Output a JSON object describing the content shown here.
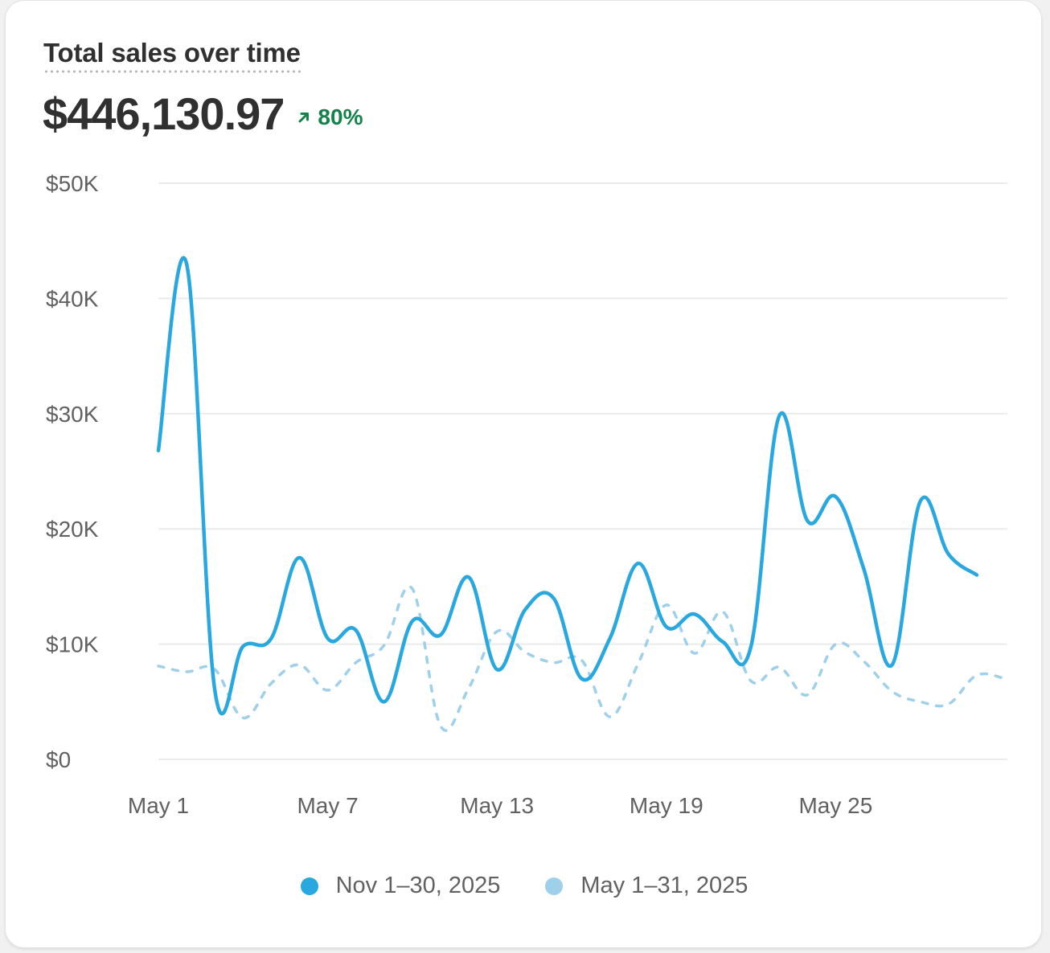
{
  "card": {
    "title": "Total sales over time",
    "total": "$446,130.97",
    "change": "80%",
    "change_icon": "arrow-up-right-icon"
  },
  "colors": {
    "current": "#29a8e0",
    "previous": "#9fd0ea",
    "grid": "#ebebeb",
    "positive": "#14824b"
  },
  "chart_data": {
    "type": "line",
    "ylim": [
      0,
      50000
    ],
    "yticks": [
      {
        "value": 0,
        "label": "$0"
      },
      {
        "value": 10000,
        "label": "$10K"
      },
      {
        "value": 20000,
        "label": "$20K"
      },
      {
        "value": 30000,
        "label": "$30K"
      },
      {
        "value": 40000,
        "label": "$40K"
      },
      {
        "value": 50000,
        "label": "$50K"
      }
    ],
    "xticks": [
      {
        "index": 0,
        "label": "May 1"
      },
      {
        "index": 6,
        "label": "May 7"
      },
      {
        "index": 12,
        "label": "May 13"
      },
      {
        "index": 18,
        "label": "May 19"
      },
      {
        "index": 24,
        "label": "May 25"
      }
    ],
    "x_count": 31,
    "grid": true,
    "legend_position": "bottom",
    "series": [
      {
        "name": "Nov 1–30, 2025",
        "style": "solid",
        "values": [
          26800,
          43000,
          6000,
          9800,
          10500,
          17500,
          10500,
          11200,
          5000,
          12000,
          10800,
          15800,
          7800,
          13000,
          14000,
          7000,
          10500,
          17000,
          11500,
          12600,
          10200,
          9800,
          29800,
          20700,
          22800,
          16500,
          8200,
          22400,
          17800,
          16000
        ]
      },
      {
        "name": "May 1–31, 2025",
        "style": "dashed",
        "values": [
          8100,
          7600,
          7800,
          3600,
          6600,
          8200,
          6000,
          8400,
          9900,
          14800,
          2900,
          6200,
          11100,
          9300,
          8400,
          8600,
          3700,
          8300,
          13400,
          9200,
          12800,
          6800,
          8000,
          5600,
          10000,
          8500,
          5900,
          5000,
          4800,
          7300,
          7000
        ]
      }
    ]
  }
}
